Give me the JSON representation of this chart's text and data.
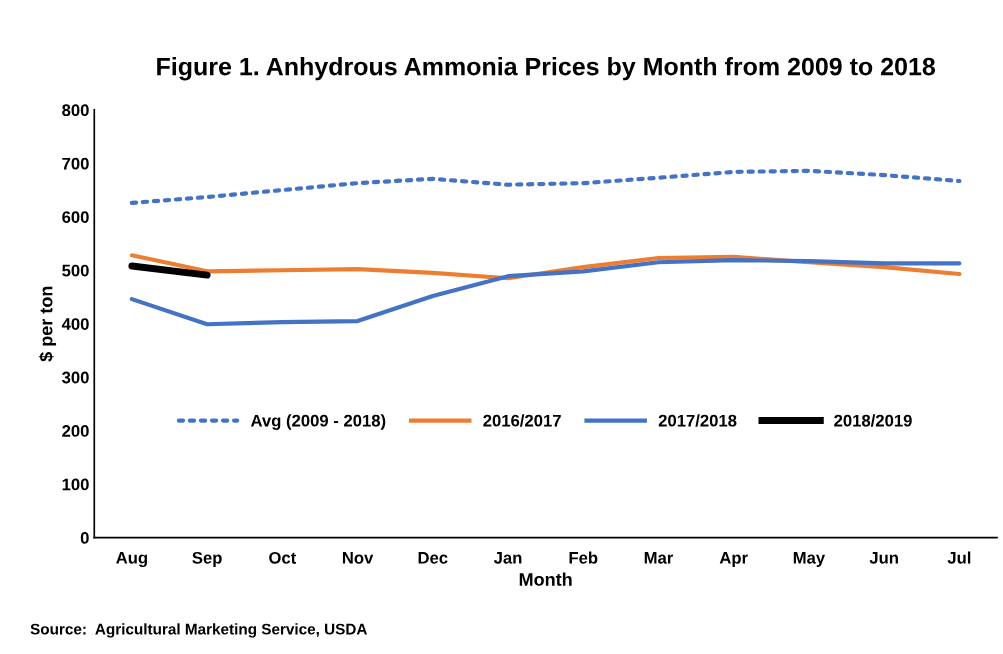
{
  "chart_data": {
    "type": "line",
    "title": "Figure 1. Anhydrous Ammonia Prices by Month from 2009 to 2018",
    "xlabel": "Month",
    "ylabel": "$ per ton",
    "categories": [
      "Aug",
      "Sep",
      "Oct",
      "Nov",
      "Dec",
      "Jan",
      "Feb",
      "Mar",
      "Apr",
      "May",
      "Jun",
      "Jul"
    ],
    "series": [
      {
        "name": "Avg (2009 - 2018)",
        "color": "#4472c4",
        "line_style": "dotted",
        "values": [
          626,
          637,
          650,
          663,
          671,
          660,
          663,
          673,
          684,
          686,
          678,
          667
        ]
      },
      {
        "name": "2016/2017",
        "color": "#ed7d31",
        "values": [
          528,
          498,
          500,
          502,
          495,
          485,
          506,
          523,
          525,
          515,
          506,
          493
        ]
      },
      {
        "name": "2017/2018",
        "color": "#4472c4",
        "values": [
          446,
          399,
          403,
          405,
          452,
          489,
          498,
          515,
          519,
          517,
          513,
          513
        ]
      },
      {
        "name": "2018/2019",
        "color": "#000000",
        "values": [
          508,
          491,
          null,
          null,
          null,
          null,
          null,
          null,
          null,
          null,
          null,
          null
        ]
      }
    ],
    "ylim": [
      0,
      800
    ],
    "yticks": [
      0,
      100,
      200,
      300,
      400,
      500,
      600,
      700,
      800
    ],
    "grid": false,
    "legend": "center",
    "line_style": "solid",
    "marker": "none",
    "annotations": [
      "Source:  Agricultural Marketing Service, USDA"
    ]
  }
}
